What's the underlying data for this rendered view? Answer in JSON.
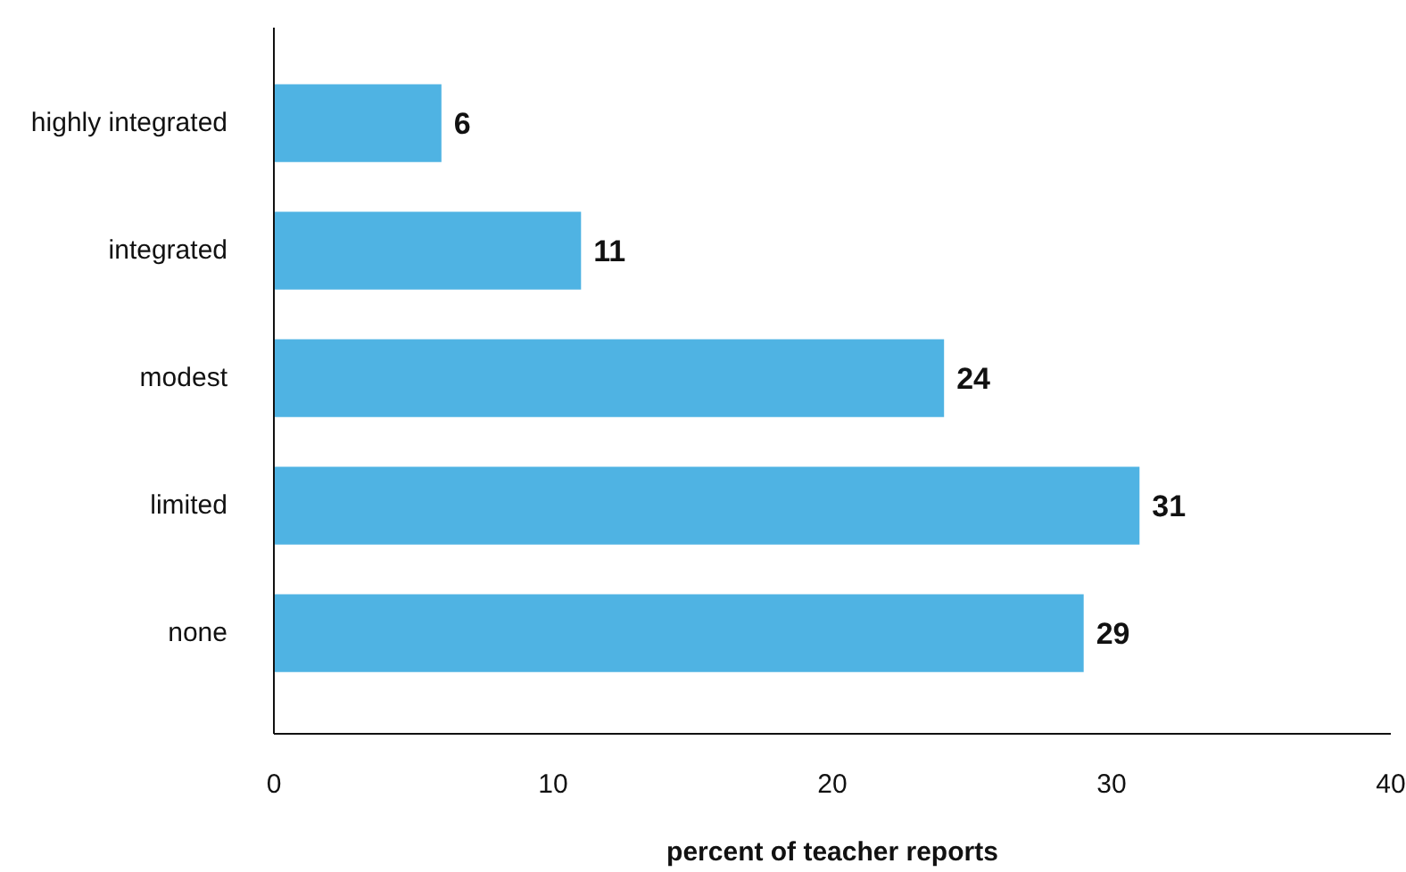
{
  "chart_data": {
    "type": "bar",
    "orientation": "horizontal",
    "xlabel": "percent of teacher reports",
    "categories": [
      "highly integrated",
      "integrated",
      "modest",
      "limited",
      "none"
    ],
    "values": [
      6,
      11,
      24,
      31,
      29
    ],
    "color": "#4fb3e3",
    "xlim": [
      0,
      40
    ],
    "xticks": [
      0,
      10,
      20,
      30,
      40
    ],
    "grid": false,
    "data_labels": true
  }
}
